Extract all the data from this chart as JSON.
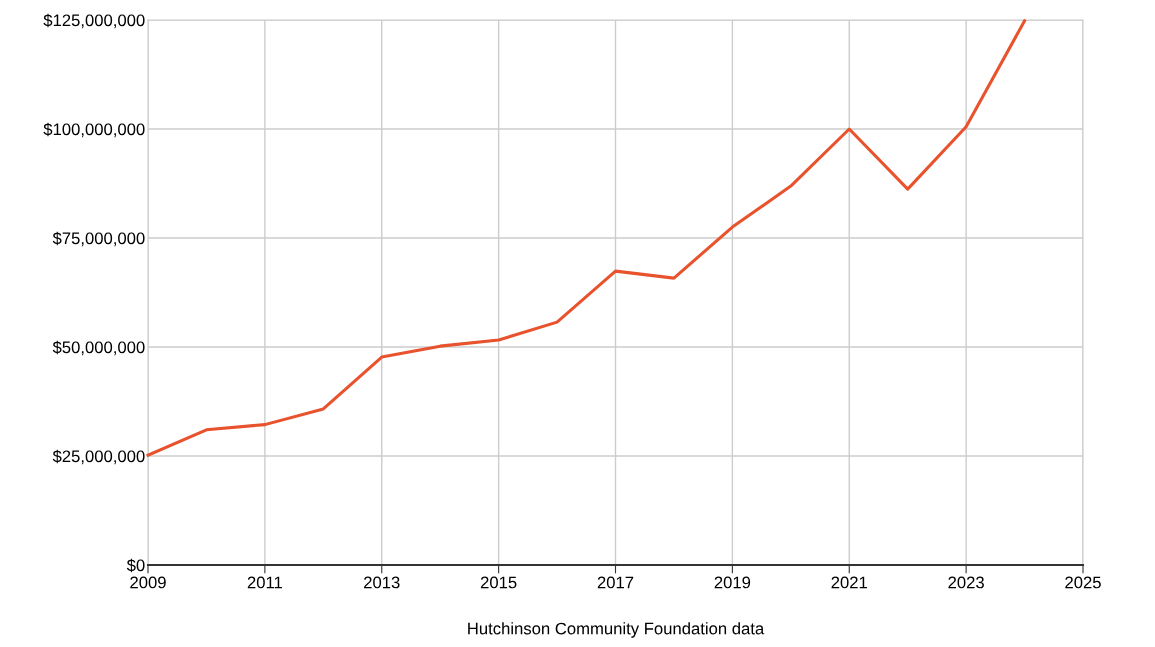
{
  "chart_data": {
    "type": "line",
    "xlabel": "Hutchinson Community Foundation data",
    "x": [
      2009,
      2010,
      2011,
      2012,
      2013,
      2014,
      2015,
      2016,
      2017,
      2018,
      2019,
      2020,
      2021,
      2022,
      2023,
      2024
    ],
    "series": [
      {
        "color": "#e8522c",
        "values": [
          25200000,
          31000000,
          32200000,
          35800000,
          47700000,
          50200000,
          51600000,
          55700000,
          67400000,
          65800000,
          77500000,
          86900000,
          100000000,
          86200000,
          100500000,
          124800000
        ]
      }
    ],
    "xlim": [
      2009,
      2025
    ],
    "xticks": [
      2009,
      2011,
      2013,
      2015,
      2017,
      2019,
      2021,
      2023,
      2025
    ],
    "ylim": [
      0,
      125000000
    ],
    "yticks": [
      {
        "value": 0,
        "label": "$0"
      },
      {
        "value": 25000000,
        "label": "$25,000,000"
      },
      {
        "value": 50000000,
        "label": "$50,000,000"
      },
      {
        "value": 75000000,
        "label": "$75,000,000"
      },
      {
        "value": 100000000,
        "label": "$100,000,000"
      },
      {
        "value": 125000000,
        "label": "$125,000,000"
      }
    ],
    "grid": true,
    "marker": "none",
    "line_style": "solid"
  }
}
